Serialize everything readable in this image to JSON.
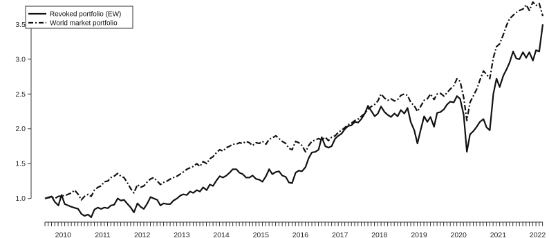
{
  "chart_data": {
    "type": "line",
    "title": "",
    "xlabel": "",
    "ylabel": "",
    "x_tick_labels": [
      "2010",
      "2011",
      "2012",
      "2013",
      "2014",
      "2015",
      "2016",
      "2017",
      "2018",
      "2019",
      "2020",
      "2021",
      "2022"
    ],
    "y_tick_labels": [
      "1.0",
      "1.5",
      "2.0",
      "2.5",
      "3.0",
      "3.5"
    ],
    "xlim": [
      2009.58,
      2022.17
    ],
    "ylim": [
      0.7,
      3.8
    ],
    "grid": false,
    "legend_position": "top-left",
    "series": [
      {
        "name": "Revoked portfolio (EW)",
        "style": "solid",
        "color": "#111111",
        "points": [
          [
            2009.58,
            1.0
          ],
          [
            2009.75,
            1.03
          ],
          [
            2009.83,
            0.95
          ],
          [
            2009.92,
            0.9
          ],
          [
            2010.0,
            1.05
          ],
          [
            2010.08,
            0.92
          ],
          [
            2010.25,
            0.88
          ],
          [
            2010.42,
            0.85
          ],
          [
            2010.5,
            0.78
          ],
          [
            2010.58,
            0.75
          ],
          [
            2010.67,
            0.77
          ],
          [
            2010.75,
            0.73
          ],
          [
            2010.83,
            0.84
          ],
          [
            2010.92,
            0.87
          ],
          [
            2011.0,
            0.85
          ],
          [
            2011.08,
            0.87
          ],
          [
            2011.17,
            0.86
          ],
          [
            2011.25,
            0.9
          ],
          [
            2011.33,
            0.91
          ],
          [
            2011.42,
            1.0
          ],
          [
            2011.5,
            0.97
          ],
          [
            2011.58,
            0.98
          ],
          [
            2011.67,
            0.92
          ],
          [
            2011.75,
            0.87
          ],
          [
            2011.83,
            0.8
          ],
          [
            2011.92,
            0.93
          ],
          [
            2012.0,
            0.88
          ],
          [
            2012.08,
            0.85
          ],
          [
            2012.17,
            0.93
          ],
          [
            2012.25,
            1.02
          ],
          [
            2012.42,
            0.98
          ],
          [
            2012.5,
            0.9
          ],
          [
            2012.58,
            0.93
          ],
          [
            2012.67,
            0.92
          ],
          [
            2012.75,
            0.92
          ],
          [
            2012.83,
            0.97
          ],
          [
            2012.92,
            1.0
          ],
          [
            2013.0,
            1.04
          ],
          [
            2013.08,
            1.06
          ],
          [
            2013.17,
            1.05
          ],
          [
            2013.25,
            1.1
          ],
          [
            2013.33,
            1.08
          ],
          [
            2013.42,
            1.12
          ],
          [
            2013.5,
            1.1
          ],
          [
            2013.58,
            1.16
          ],
          [
            2013.67,
            1.12
          ],
          [
            2013.75,
            1.2
          ],
          [
            2013.83,
            1.18
          ],
          [
            2013.92,
            1.26
          ],
          [
            2014.0,
            1.32
          ],
          [
            2014.08,
            1.3
          ],
          [
            2014.17,
            1.33
          ],
          [
            2014.25,
            1.37
          ],
          [
            2014.33,
            1.42
          ],
          [
            2014.42,
            1.42
          ],
          [
            2014.5,
            1.37
          ],
          [
            2014.58,
            1.35
          ],
          [
            2014.67,
            1.3
          ],
          [
            2014.75,
            1.3
          ],
          [
            2014.83,
            1.33
          ],
          [
            2014.92,
            1.28
          ],
          [
            2015.0,
            1.27
          ],
          [
            2015.08,
            1.24
          ],
          [
            2015.17,
            1.32
          ],
          [
            2015.25,
            1.42
          ],
          [
            2015.33,
            1.35
          ],
          [
            2015.42,
            1.38
          ],
          [
            2015.5,
            1.39
          ],
          [
            2015.58,
            1.33
          ],
          [
            2015.67,
            1.31
          ],
          [
            2015.75,
            1.23
          ],
          [
            2015.83,
            1.22
          ],
          [
            2015.92,
            1.37
          ],
          [
            2016.0,
            1.4
          ],
          [
            2016.08,
            1.39
          ],
          [
            2016.17,
            1.45
          ],
          [
            2016.25,
            1.58
          ],
          [
            2016.33,
            1.66
          ],
          [
            2016.42,
            1.67
          ],
          [
            2016.5,
            1.7
          ],
          [
            2016.58,
            1.88
          ],
          [
            2016.67,
            1.75
          ],
          [
            2016.75,
            1.73
          ],
          [
            2016.83,
            1.75
          ],
          [
            2016.92,
            1.86
          ],
          [
            2017.0,
            1.9
          ],
          [
            2017.08,
            1.93
          ],
          [
            2017.17,
            2.0
          ],
          [
            2017.25,
            2.04
          ],
          [
            2017.33,
            2.05
          ],
          [
            2017.42,
            2.1
          ],
          [
            2017.5,
            2.09
          ],
          [
            2017.58,
            2.14
          ],
          [
            2017.67,
            2.22
          ],
          [
            2017.75,
            2.33
          ],
          [
            2017.83,
            2.26
          ],
          [
            2017.92,
            2.18
          ],
          [
            2018.0,
            2.22
          ],
          [
            2018.08,
            2.32
          ],
          [
            2018.17,
            2.24
          ],
          [
            2018.25,
            2.2
          ],
          [
            2018.33,
            2.17
          ],
          [
            2018.42,
            2.22
          ],
          [
            2018.5,
            2.18
          ],
          [
            2018.58,
            2.27
          ],
          [
            2018.67,
            2.22
          ],
          [
            2018.75,
            2.3
          ],
          [
            2018.83,
            2.1
          ],
          [
            2018.92,
            1.98
          ],
          [
            2019.0,
            1.79
          ],
          [
            2019.08,
            1.98
          ],
          [
            2019.17,
            2.18
          ],
          [
            2019.25,
            2.1
          ],
          [
            2019.33,
            2.17
          ],
          [
            2019.42,
            2.03
          ],
          [
            2019.5,
            2.23
          ],
          [
            2019.58,
            2.24
          ],
          [
            2019.67,
            2.28
          ],
          [
            2019.75,
            2.35
          ],
          [
            2019.83,
            2.39
          ],
          [
            2019.92,
            2.38
          ],
          [
            2020.0,
            2.47
          ],
          [
            2020.08,
            2.43
          ],
          [
            2020.17,
            2.2
          ],
          [
            2020.25,
            1.67
          ],
          [
            2020.33,
            1.92
          ],
          [
            2020.42,
            1.97
          ],
          [
            2020.5,
            2.03
          ],
          [
            2020.58,
            2.1
          ],
          [
            2020.67,
            2.14
          ],
          [
            2020.75,
            2.02
          ],
          [
            2020.83,
            1.98
          ],
          [
            2020.92,
            2.5
          ],
          [
            2021.0,
            2.72
          ],
          [
            2021.08,
            2.6
          ],
          [
            2021.17,
            2.76
          ],
          [
            2021.25,
            2.85
          ],
          [
            2021.33,
            2.95
          ],
          [
            2021.42,
            3.11
          ],
          [
            2021.5,
            3.01
          ],
          [
            2021.58,
            3.0
          ],
          [
            2021.67,
            3.1
          ],
          [
            2021.75,
            3.02
          ],
          [
            2021.83,
            3.1
          ],
          [
            2021.92,
            2.98
          ],
          [
            2022.0,
            3.13
          ],
          [
            2022.08,
            3.11
          ],
          [
            2022.17,
            3.5
          ]
        ]
      },
      {
        "name": "World market portfolio",
        "style": "dashdot",
        "color": "#111111",
        "points": [
          [
            2009.58,
            1.0
          ],
          [
            2009.75,
            1.02
          ],
          [
            2009.83,
            1.0
          ],
          [
            2009.92,
            1.03
          ],
          [
            2010.0,
            1.04
          ],
          [
            2010.08,
            1.04
          ],
          [
            2010.25,
            1.08
          ],
          [
            2010.33,
            1.12
          ],
          [
            2010.42,
            1.06
          ],
          [
            2010.5,
            0.98
          ],
          [
            2010.58,
            1.03
          ],
          [
            2010.67,
            1.06
          ],
          [
            2010.75,
            1.03
          ],
          [
            2010.83,
            1.12
          ],
          [
            2010.92,
            1.16
          ],
          [
            2011.0,
            1.18
          ],
          [
            2011.08,
            1.24
          ],
          [
            2011.17,
            1.25
          ],
          [
            2011.25,
            1.3
          ],
          [
            2011.33,
            1.32
          ],
          [
            2011.42,
            1.36
          ],
          [
            2011.5,
            1.32
          ],
          [
            2011.58,
            1.3
          ],
          [
            2011.67,
            1.22
          ],
          [
            2011.75,
            1.14
          ],
          [
            2011.83,
            1.08
          ],
          [
            2011.92,
            1.2
          ],
          [
            2012.0,
            1.16
          ],
          [
            2012.08,
            1.18
          ],
          [
            2012.17,
            1.24
          ],
          [
            2012.25,
            1.28
          ],
          [
            2012.33,
            1.3
          ],
          [
            2012.42,
            1.25
          ],
          [
            2012.5,
            1.2
          ],
          [
            2012.58,
            1.23
          ],
          [
            2012.67,
            1.25
          ],
          [
            2012.75,
            1.28
          ],
          [
            2012.83,
            1.3
          ],
          [
            2012.92,
            1.32
          ],
          [
            2013.0,
            1.35
          ],
          [
            2013.08,
            1.38
          ],
          [
            2013.17,
            1.42
          ],
          [
            2013.25,
            1.44
          ],
          [
            2013.33,
            1.46
          ],
          [
            2013.42,
            1.5
          ],
          [
            2013.5,
            1.46
          ],
          [
            2013.58,
            1.53
          ],
          [
            2013.67,
            1.5
          ],
          [
            2013.75,
            1.57
          ],
          [
            2013.83,
            1.6
          ],
          [
            2013.92,
            1.66
          ],
          [
            2014.0,
            1.7
          ],
          [
            2014.08,
            1.68
          ],
          [
            2014.17,
            1.73
          ],
          [
            2014.25,
            1.75
          ],
          [
            2014.33,
            1.78
          ],
          [
            2014.42,
            1.78
          ],
          [
            2014.5,
            1.8
          ],
          [
            2014.58,
            1.79
          ],
          [
            2014.67,
            1.82
          ],
          [
            2014.75,
            1.8
          ],
          [
            2014.83,
            1.76
          ],
          [
            2014.92,
            1.8
          ],
          [
            2015.0,
            1.79
          ],
          [
            2015.08,
            1.82
          ],
          [
            2015.17,
            1.78
          ],
          [
            2015.25,
            1.85
          ],
          [
            2015.33,
            1.87
          ],
          [
            2015.42,
            1.9
          ],
          [
            2015.5,
            1.86
          ],
          [
            2015.58,
            1.82
          ],
          [
            2015.67,
            1.79
          ],
          [
            2015.75,
            1.72
          ],
          [
            2015.83,
            1.7
          ],
          [
            2015.92,
            1.82
          ],
          [
            2016.0,
            1.8
          ],
          [
            2016.08,
            1.76
          ],
          [
            2016.17,
            1.67
          ],
          [
            2016.25,
            1.76
          ],
          [
            2016.33,
            1.82
          ],
          [
            2016.42,
            1.84
          ],
          [
            2016.5,
            1.86
          ],
          [
            2016.58,
            1.84
          ],
          [
            2016.67,
            1.88
          ],
          [
            2016.75,
            1.83
          ],
          [
            2016.83,
            1.88
          ],
          [
            2016.92,
            1.9
          ],
          [
            2017.0,
            1.95
          ],
          [
            2017.08,
            1.98
          ],
          [
            2017.17,
            2.02
          ],
          [
            2017.25,
            2.06
          ],
          [
            2017.33,
            2.08
          ],
          [
            2017.42,
            2.12
          ],
          [
            2017.5,
            2.14
          ],
          [
            2017.58,
            2.18
          ],
          [
            2017.67,
            2.22
          ],
          [
            2017.75,
            2.28
          ],
          [
            2017.83,
            2.32
          ],
          [
            2017.92,
            2.35
          ],
          [
            2018.0,
            2.4
          ],
          [
            2018.08,
            2.5
          ],
          [
            2018.17,
            2.44
          ],
          [
            2018.25,
            2.41
          ],
          [
            2018.33,
            2.43
          ],
          [
            2018.42,
            2.4
          ],
          [
            2018.5,
            2.42
          ],
          [
            2018.58,
            2.48
          ],
          [
            2018.67,
            2.5
          ],
          [
            2018.75,
            2.48
          ],
          [
            2018.83,
            2.38
          ],
          [
            2018.92,
            2.33
          ],
          [
            2019.0,
            2.25
          ],
          [
            2019.08,
            2.32
          ],
          [
            2019.17,
            2.41
          ],
          [
            2019.25,
            2.43
          ],
          [
            2019.33,
            2.5
          ],
          [
            2019.42,
            2.42
          ],
          [
            2019.5,
            2.5
          ],
          [
            2019.58,
            2.51
          ],
          [
            2019.67,
            2.47
          ],
          [
            2019.75,
            2.52
          ],
          [
            2019.83,
            2.57
          ],
          [
            2019.92,
            2.62
          ],
          [
            2020.0,
            2.72
          ],
          [
            2020.08,
            2.68
          ],
          [
            2020.17,
            2.45
          ],
          [
            2020.25,
            2.12
          ],
          [
            2020.33,
            2.38
          ],
          [
            2020.42,
            2.48
          ],
          [
            2020.5,
            2.57
          ],
          [
            2020.58,
            2.7
          ],
          [
            2020.67,
            2.83
          ],
          [
            2020.75,
            2.78
          ],
          [
            2020.83,
            2.72
          ],
          [
            2020.92,
            3.02
          ],
          [
            2021.0,
            3.18
          ],
          [
            2021.08,
            3.22
          ],
          [
            2021.17,
            3.35
          ],
          [
            2021.25,
            3.48
          ],
          [
            2021.33,
            3.58
          ],
          [
            2021.42,
            3.63
          ],
          [
            2021.5,
            3.67
          ],
          [
            2021.58,
            3.7
          ],
          [
            2021.67,
            3.72
          ],
          [
            2021.75,
            3.78
          ],
          [
            2021.83,
            3.7
          ],
          [
            2021.92,
            3.82
          ],
          [
            2022.0,
            3.77
          ],
          [
            2022.08,
            3.8
          ],
          [
            2022.17,
            3.62
          ]
        ]
      }
    ]
  }
}
